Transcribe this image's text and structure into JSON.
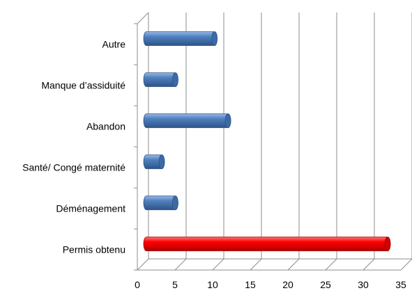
{
  "chart_data": {
    "type": "bar",
    "orientation": "horizontal",
    "style": "3d-cylinder",
    "categories": [
      "Permis obtenu",
      "Déménagement",
      "Santé/ Congé maternité",
      "Abandon",
      "Manque d’assiduité",
      "Autre"
    ],
    "values": [
      32.5,
      4.3,
      2.5,
      11.3,
      4.3,
      9.5
    ],
    "xlim": [
      0,
      35
    ],
    "xticks": [
      "0",
      "5",
      "10",
      "15",
      "20",
      "25",
      "30",
      "35"
    ],
    "xgrid": true,
    "legend": "none",
    "colors": {
      "default": "#4f81bd",
      "highlight": "#ff0000"
    },
    "highlight_index": 0
  }
}
